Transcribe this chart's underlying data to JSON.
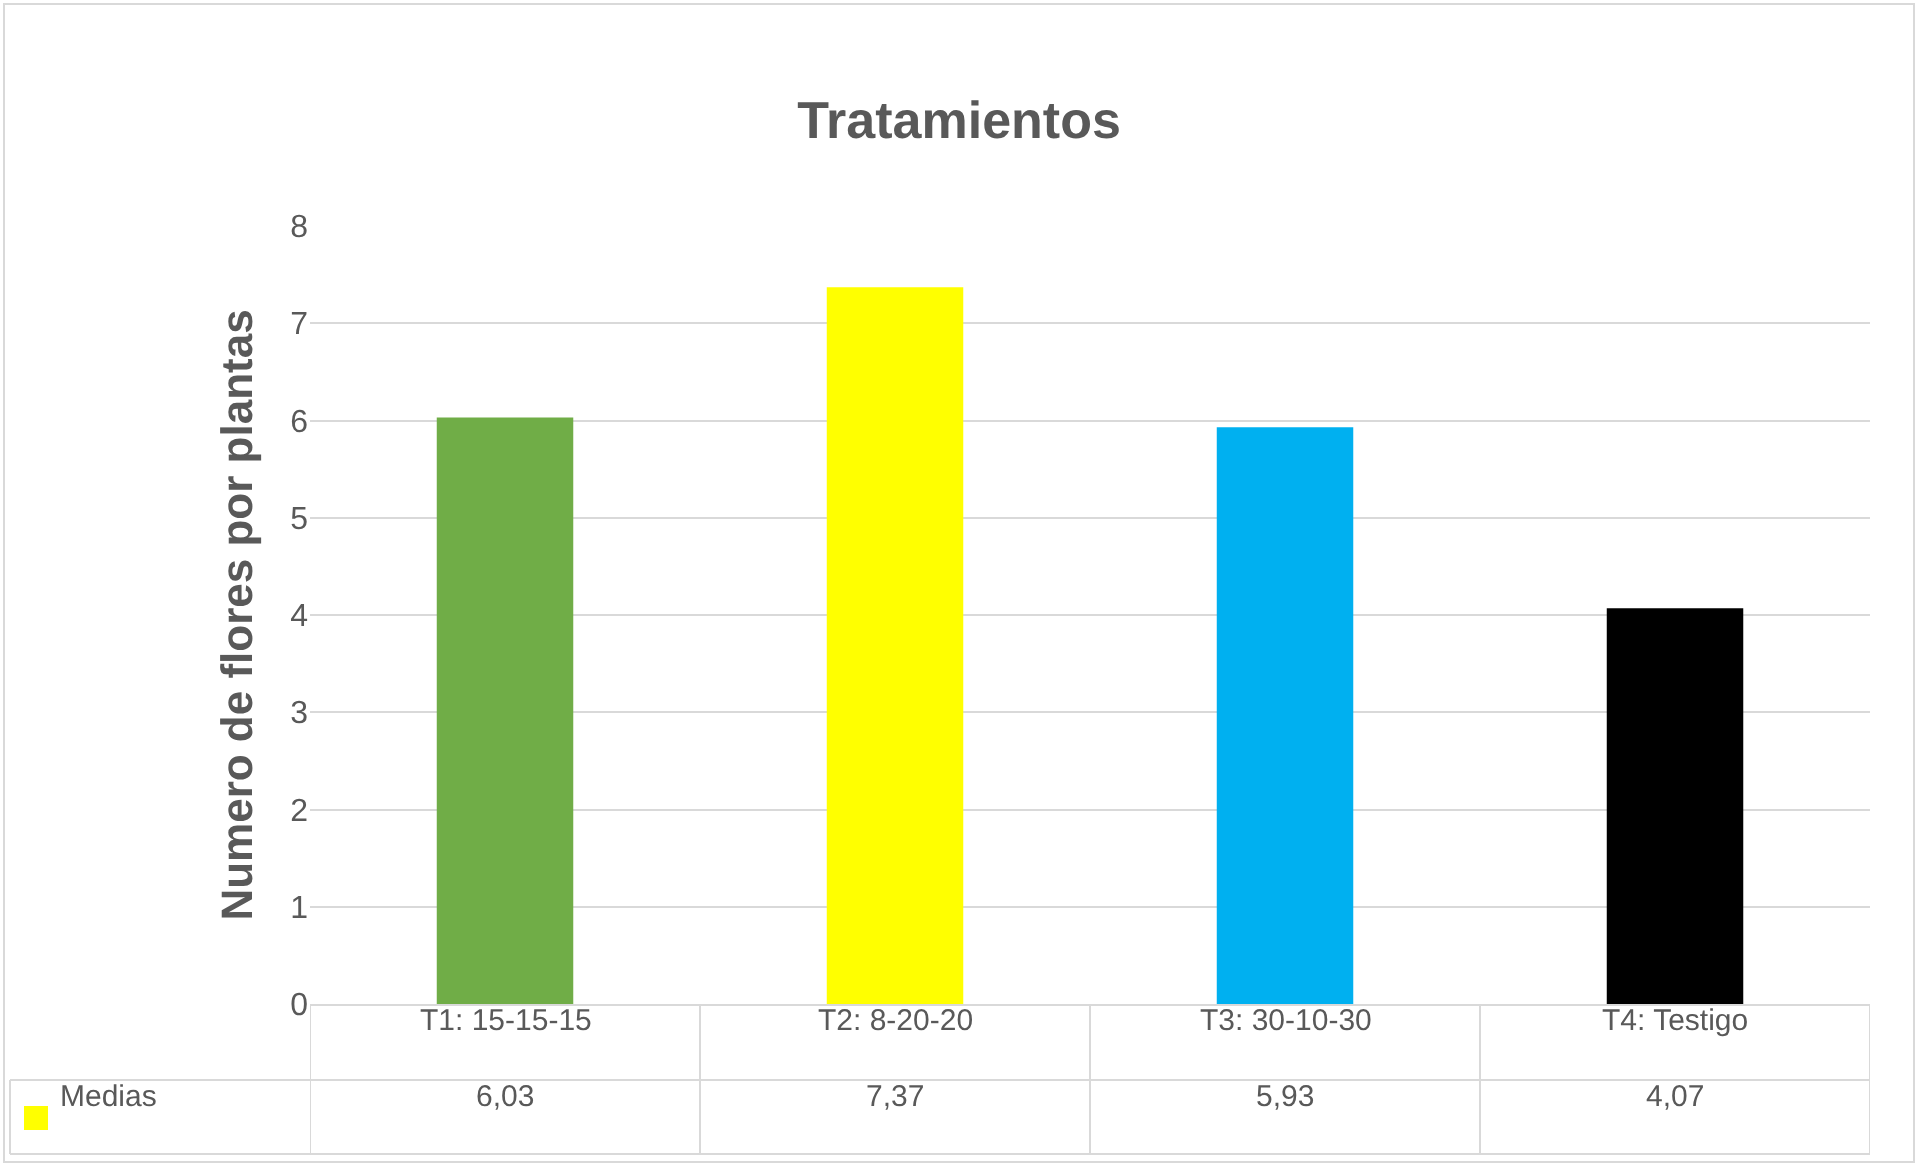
{
  "chart_data": {
    "type": "bar",
    "title": "Tratamientos",
    "ylabel": "Numero de flores por plantas",
    "categories": [
      "T1: 15-15-15",
      "T2: 8-20-20",
      "T3: 30-10-30",
      "T4: Testigo"
    ],
    "series": [
      {
        "name": "Medias",
        "color": "#ffff00",
        "colors": [
          "#70ad47",
          "#ffff00",
          "#00b0f0",
          "#000000"
        ],
        "values": [
          6.03,
          7.37,
          5.93,
          4.07
        ],
        "value_labels": [
          "6,03",
          "7,37",
          "5,93",
          "4,07"
        ]
      }
    ],
    "ylim": [
      0,
      8
    ],
    "yticks": [
      0,
      1,
      2,
      3,
      4,
      5,
      6,
      7,
      8
    ],
    "grid": "y",
    "legend": "bottom"
  }
}
